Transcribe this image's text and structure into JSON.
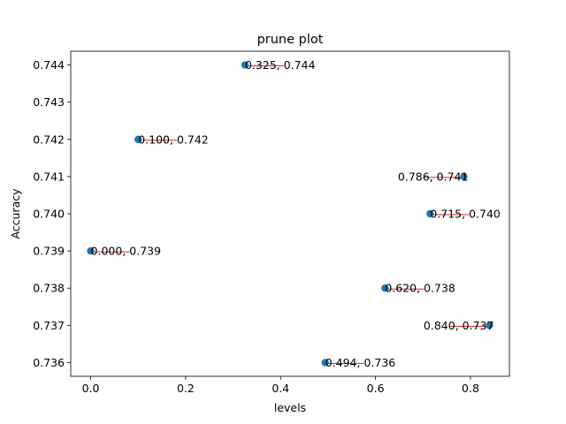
{
  "chart_data": {
    "type": "scatter",
    "title": "prune plot",
    "xlabel": "levels",
    "ylabel": "Accuracy",
    "xlim": [
      -0.042,
      0.882
    ],
    "ylim": [
      0.73563,
      0.74437
    ],
    "xticks": [
      0.0,
      0.2,
      0.4,
      0.6,
      0.8
    ],
    "xtick_labels": [
      "0.0",
      "0.2",
      "0.4",
      "0.6",
      "0.8"
    ],
    "yticks": [
      0.736,
      0.737,
      0.738,
      0.739,
      0.74,
      0.741,
      0.742,
      0.743,
      0.744
    ],
    "ytick_labels": [
      "0.736",
      "0.737",
      "0.738",
      "0.739",
      "0.740",
      "0.741",
      "0.742",
      "0.743",
      "0.744"
    ],
    "grid": false,
    "legend": "none",
    "marker_color": "#1f77b4",
    "annotation_line_color": "#d62728",
    "points": [
      {
        "x": 0.0,
        "y": 0.739,
        "label": "0.000, 0.739",
        "label_side": "right"
      },
      {
        "x": 0.1,
        "y": 0.742,
        "label": "0.100, 0.742",
        "label_side": "right"
      },
      {
        "x": 0.325,
        "y": 0.744,
        "label": "0.325, 0.744",
        "label_side": "right"
      },
      {
        "x": 0.494,
        "y": 0.736,
        "label": "0.494, 0.736",
        "label_side": "right"
      },
      {
        "x": 0.62,
        "y": 0.738,
        "label": "0.620, 0.738",
        "label_side": "right"
      },
      {
        "x": 0.715,
        "y": 0.74,
        "label": "0.715, 0.740",
        "label_side": "right"
      },
      {
        "x": 0.786,
        "y": 0.741,
        "label": "0.786, 0.741",
        "label_side": "left"
      },
      {
        "x": 0.84,
        "y": 0.737,
        "label": "0.840, 0.737",
        "label_side": "left"
      }
    ]
  }
}
